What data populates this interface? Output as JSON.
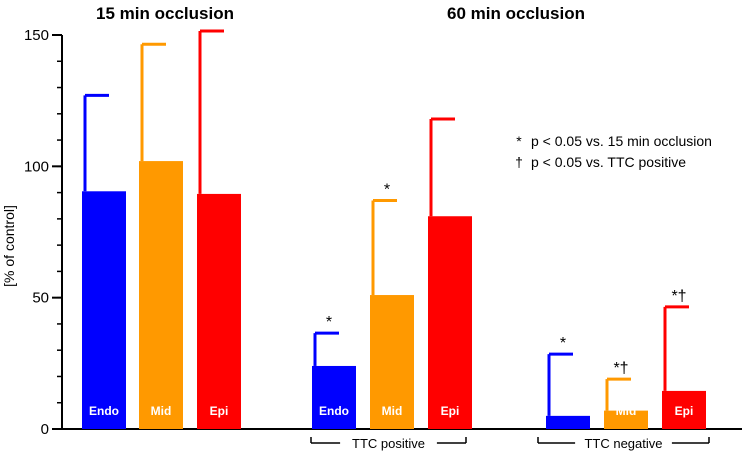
{
  "chart_data": {
    "type": "bar",
    "ylabel": "[% of control]",
    "ylim": [
      0,
      150
    ],
    "yticks": [
      0,
      50,
      100,
      150
    ],
    "minor_tick_step": 10,
    "panels": [
      {
        "title": "15 min occlusion",
        "groups": [
          {
            "label": "",
            "bars": [
              {
                "label": "Endo",
                "value": 90.5,
                "error": 36.5,
                "color": "#0000ff",
                "marks": ""
              },
              {
                "label": "Mid",
                "value": 102,
                "error": 44.5,
                "color": "#ff9900",
                "marks": ""
              },
              {
                "label": "Epi",
                "value": 89.5,
                "error": 62,
                "color": "#ff0000",
                "marks": ""
              }
            ]
          }
        ]
      },
      {
        "title": "60 min occlusion",
        "groups": [
          {
            "label": "TTC positive",
            "bars": [
              {
                "label": "Endo",
                "value": 24,
                "error": 12.5,
                "color": "#0000ff",
                "marks": "*"
              },
              {
                "label": "Mid",
                "value": 51,
                "error": 36,
                "color": "#ff9900",
                "marks": "*"
              },
              {
                "label": "Epi",
                "value": 81,
                "error": 37,
                "color": "#ff0000",
                "marks": ""
              }
            ]
          },
          {
            "label": "TTC negative",
            "bars": [
              {
                "label": "Endo",
                "value": 5,
                "error": 23.5,
                "color": "#0000ff",
                "marks": "*"
              },
              {
                "label": "Mid",
                "value": 7,
                "error": 12,
                "color": "#ff9900",
                "marks": "*†"
              },
              {
                "label": "Epi",
                "value": 14.5,
                "error": 32,
                "color": "#ff0000",
                "marks": "*†"
              }
            ]
          }
        ]
      }
    ],
    "legend": [
      {
        "symbol": "*",
        "text": "p < 0.05 vs. 15 min occlusion"
      },
      {
        "symbol": "†",
        "text": "p < 0.05 vs. TTC positive"
      }
    ]
  }
}
